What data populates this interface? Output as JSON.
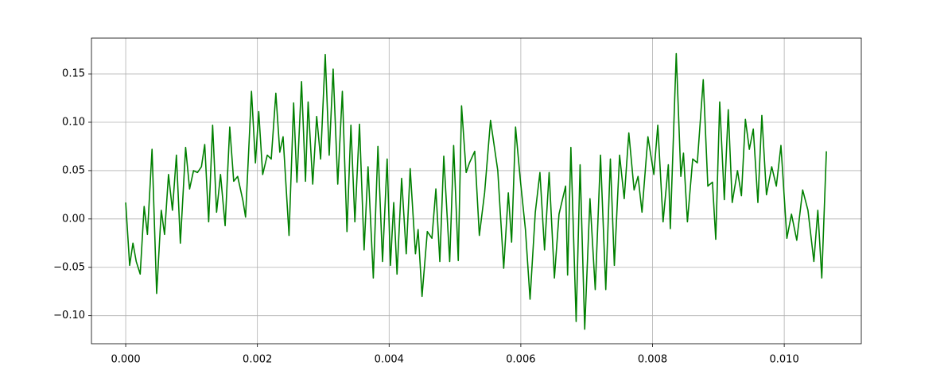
{
  "chart_data": {
    "type": "line",
    "color": "#008000",
    "grid": true,
    "xlim": [
      -0.00052,
      0.01117
    ],
    "ylim": [
      -0.129,
      0.187
    ],
    "xticks": [
      {
        "value": 0,
        "label": "0.000"
      },
      {
        "value": 0.002,
        "label": "0.002"
      },
      {
        "value": 0.004,
        "label": "0.004"
      },
      {
        "value": 0.006,
        "label": "0.006"
      },
      {
        "value": 0.008,
        "label": "0.008"
      },
      {
        "value": 0.01,
        "label": "0.010"
      }
    ],
    "yticks": [
      {
        "value": -0.1,
        "label": "−0.10"
      },
      {
        "value": -0.05,
        "label": "−0.05"
      },
      {
        "value": 0,
        "label": "0.00"
      },
      0.05,
      {
        "value": 0.1,
        "label": "0.10"
      },
      0.15
    ],
    "x": [
      0,
      6e-05,
      0.00011,
      0.00016,
      0.00022,
      0.00028,
      0.00033,
      0.0004,
      0.00047,
      0.00054,
      0.00059,
      0.00065,
      0.00071,
      0.00077,
      0.00083,
      0.00091,
      0.00097,
      0.00103,
      0.00109,
      0.00115,
      0.0012,
      0.00126,
      0.00132,
      0.00138,
      0.00144,
      0.00151,
      0.00158,
      0.00164,
      0.0017,
      0.00178,
      0.00182,
      0.00191,
      0.00197,
      0.00202,
      0.00208,
      0.00215,
      0.00221,
      0.00228,
      0.00234,
      0.00239,
      0.00248,
      0.00255,
      0.0026,
      0.00267,
      0.00273,
      0.00277,
      0.00284,
      0.0029,
      0.00296,
      0.00303,
      0.00309,
      0.00315,
      0.00322,
      0.00329,
      0.00336,
      0.00342,
      0.00348,
      0.00355,
      0.00362,
      0.00368,
      0.00376,
      0.00383,
      0.0039,
      0.00397,
      0.00402,
      0.00407,
      0.00412,
      0.00419,
      0.00426,
      0.00432,
      0.0044,
      0.00444,
      0.0045,
      0.00458,
      0.00465,
      0.00471,
      0.00477,
      0.00483,
      0.00492,
      0.00498,
      0.00505,
      0.0051,
      0.00517,
      0.00522,
      0.0053,
      0.00537,
      0.00545,
      0.00554,
      0.00565,
      0.00574,
      0.00581,
      0.00586,
      0.00592,
      0.00599,
      0.00607,
      0.00614,
      0.00622,
      0.00629,
      0.00636,
      0.00643,
      0.00651,
      0.00658,
      0.00668,
      0.00671,
      0.00676,
      0.00684,
      0.0069,
      0.00697,
      0.00705,
      0.00713,
      0.00721,
      0.00729,
      0.00736,
      0.00742,
      0.0075,
      0.00757,
      0.00764,
      0.00772,
      0.00778,
      0.00784,
      0.00793,
      0.00802,
      0.00808,
      0.00816,
      0.00824,
      0.00827,
      0.00836,
      0.00843,
      0.00847,
      0.00853,
      0.00861,
      0.00868,
      0.00877,
      0.00884,
      0.00891,
      0.00896,
      0.00902,
      0.00909,
      0.00915,
      0.00921,
      0.00929,
      0.00935,
      0.00941,
      0.00947,
      0.00953,
      0.0096,
      0.00966,
      0.00973,
      0.00981,
      0.00988,
      0.00995,
      0.01004,
      0.01011,
      0.01019,
      0.01028,
      0.01036,
      0.01045,
      0.01051,
      0.01057,
      0.01064
    ],
    "values": [
      0.017,
      -0.048,
      -0.025,
      -0.044,
      -0.057,
      0.013,
      -0.016,
      0.072,
      -0.077,
      0.009,
      -0.016,
      0.046,
      0.009,
      0.066,
      -0.025,
      0.074,
      0.031,
      0.05,
      0.048,
      0.054,
      0.077,
      -0.003,
      0.097,
      0.007,
      0.046,
      -0.007,
      0.095,
      0.039,
      0.044,
      0.019,
      0.002,
      0.132,
      0.058,
      0.111,
      0.046,
      0.066,
      0.062,
      0.13,
      0.069,
      0.085,
      -0.017,
      0.12,
      0.038,
      0.142,
      0.039,
      0.121,
      0.036,
      0.106,
      0.062,
      0.17,
      0.066,
      0.155,
      0.036,
      0.132,
      -0.013,
      0.097,
      -0.003,
      0.098,
      -0.032,
      0.054,
      -0.061,
      0.075,
      -0.044,
      0.062,
      -0.048,
      0.017,
      -0.057,
      0.042,
      -0.036,
      0.052,
      -0.036,
      -0.011,
      -0.08,
      -0.013,
      -0.02,
      0.031,
      -0.044,
      0.065,
      -0.044,
      0.076,
      -0.043,
      0.117,
      0.048,
      0.058,
      0.07,
      -0.017,
      0.027,
      0.102,
      0.05,
      -0.051,
      0.027,
      -0.024,
      0.095,
      0.042,
      -0.011,
      -0.083,
      0.007,
      0.048,
      -0.032,
      0.048,
      -0.061,
      0.005,
      0.034,
      -0.058,
      0.074,
      -0.106,
      0.056,
      -0.114,
      0.021,
      -0.073,
      0.066,
      -0.073,
      0.062,
      -0.048,
      0.066,
      0.021,
      0.089,
      0.03,
      0.044,
      0.007,
      0.085,
      0.046,
      0.097,
      -0.003,
      0.056,
      -0.01,
      0.171,
      0.044,
      0.068,
      -0.003,
      0.062,
      0.058,
      0.144,
      0.034,
      0.038,
      -0.021,
      0.121,
      0.02,
      0.113,
      0.017,
      0.05,
      0.024,
      0.103,
      0.072,
      0.093,
      0.017,
      0.107,
      0.025,
      0.054,
      0.034,
      0.076,
      -0.02,
      0.005,
      -0.022,
      0.03,
      0.009,
      -0.044,
      0.009,
      -0.061,
      0.07
    ]
  }
}
